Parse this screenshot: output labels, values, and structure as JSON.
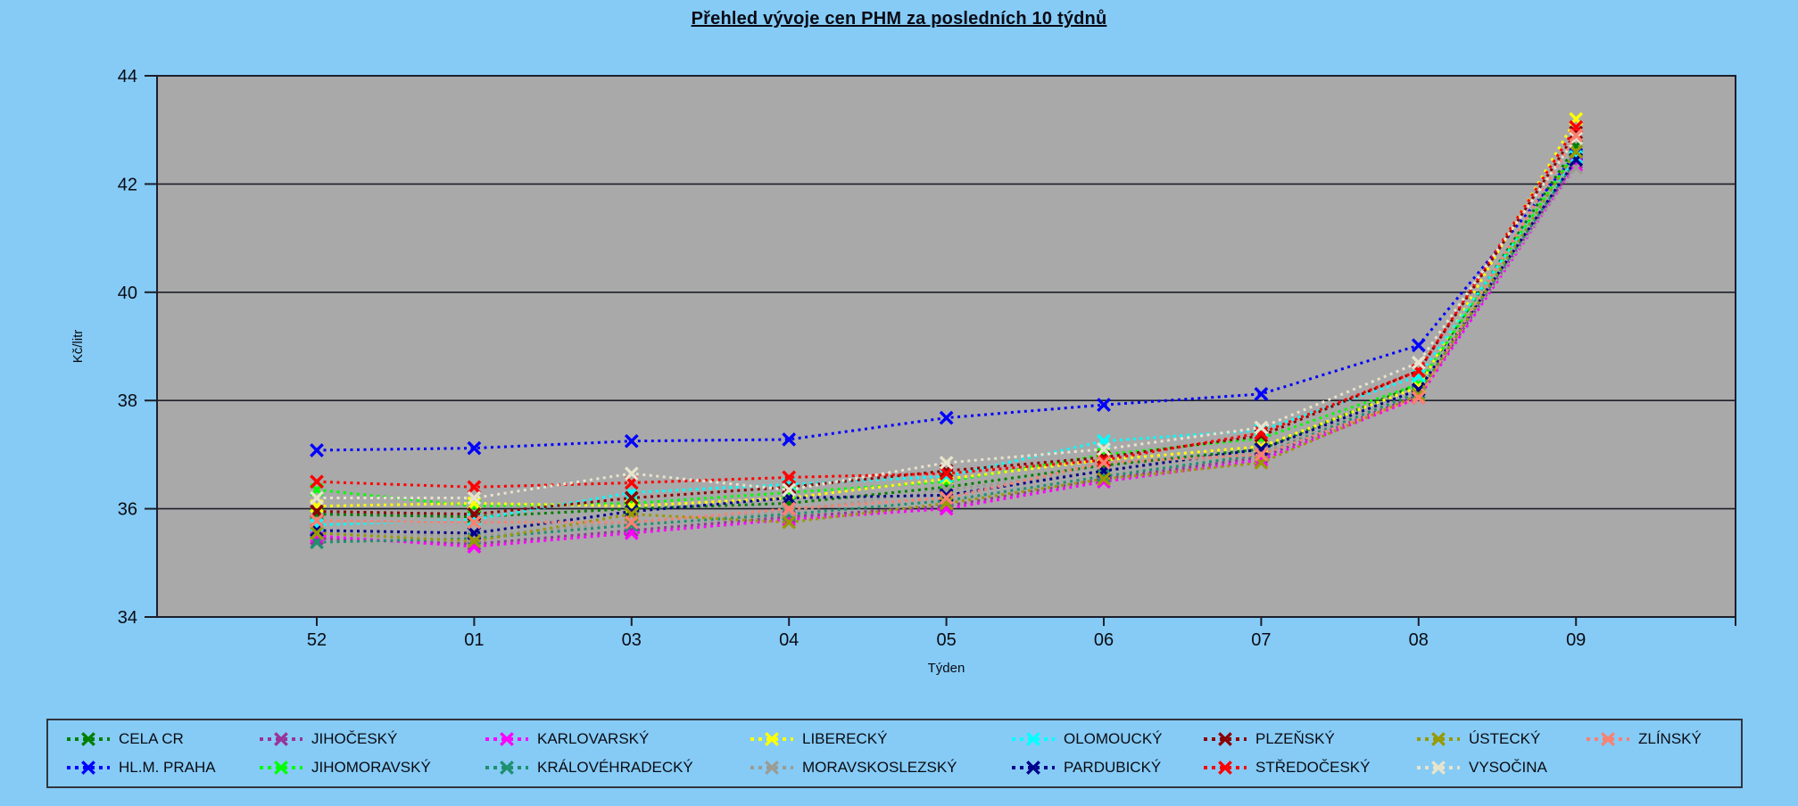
{
  "chart_data": {
    "type": "line",
    "title": "Přehled vývoje cen PHM za posledních 10 týdnů",
    "xlabel": "Týden",
    "ylabel": "Kč/litr",
    "ylim": [
      34,
      44
    ],
    "yticks": [
      34,
      36,
      38,
      40,
      42,
      44
    ],
    "grid": "horizontal",
    "legend_position": "bottom",
    "line_style": "dotted",
    "marker": "x",
    "page_bg": "#85CBF6",
    "plot_bg": "#A9A9A9",
    "axis_color": "#1c1e2a",
    "categories": [
      "52",
      "01",
      "03",
      "04",
      "05",
      "06",
      "07",
      "08",
      "09"
    ],
    "series": [
      {
        "name": "CELA CR",
        "color": "#008000",
        "values": [
          35.9,
          35.85,
          36.0,
          36.1,
          36.4,
          36.8,
          37.1,
          38.3,
          42.7
        ]
      },
      {
        "name": "HL.M. PRAHA",
        "color": "#0000FF",
        "values": [
          37.08,
          37.12,
          37.25,
          37.28,
          37.68,
          37.92,
          38.12,
          39.02,
          42.55
        ]
      },
      {
        "name": "JIHOČESKÝ",
        "color": "#993399",
        "values": [
          35.45,
          35.35,
          35.6,
          35.85,
          36.05,
          36.55,
          36.95,
          38.1,
          42.4
        ]
      },
      {
        "name": "JIHOMORAVSKÝ",
        "color": "#00FF00",
        "values": [
          36.35,
          36.05,
          36.1,
          36.3,
          36.5,
          37.0,
          37.3,
          38.3,
          42.6
        ]
      },
      {
        "name": "KARLOVARSKÝ",
        "color": "#FF00FF",
        "values": [
          35.5,
          35.3,
          35.55,
          35.8,
          36.0,
          36.5,
          36.9,
          38.05,
          42.35
        ]
      },
      {
        "name": "KRÁLOVÉHRADECKÝ",
        "color": "#1E9070",
        "values": [
          35.38,
          35.45,
          35.7,
          35.9,
          36.15,
          36.6,
          37.0,
          38.15,
          42.45
        ]
      },
      {
        "name": "LIBERECKÝ",
        "color": "#FFFF00",
        "values": [
          36.05,
          36.1,
          36.05,
          36.2,
          36.55,
          36.9,
          37.15,
          38.25,
          43.2
        ]
      },
      {
        "name": "MORAVSKOSLEZSKÝ",
        "color": "#9C9C94",
        "values": [
          35.55,
          35.5,
          35.75,
          35.95,
          36.35,
          36.7,
          37.05,
          38.2,
          42.3
        ]
      },
      {
        "name": "OLOMOUCKÝ",
        "color": "#00FFFF",
        "values": [
          35.7,
          35.8,
          36.3,
          36.45,
          36.6,
          37.25,
          37.45,
          38.45,
          42.5
        ]
      },
      {
        "name": "PARDUBICKÝ",
        "color": "#00008B",
        "values": [
          35.6,
          35.55,
          35.95,
          36.2,
          36.25,
          36.7,
          37.1,
          38.2,
          42.45
        ]
      },
      {
        "name": "PLZEŇSKÝ",
        "color": "#8B0000",
        "values": [
          35.95,
          35.9,
          36.2,
          36.4,
          36.7,
          36.95,
          37.35,
          38.55,
          42.95
        ]
      },
      {
        "name": "STŘEDOČESKÝ",
        "color": "#FF0000",
        "values": [
          36.5,
          36.4,
          36.48,
          36.58,
          36.65,
          36.9,
          37.4,
          38.55,
          43.05
        ]
      },
      {
        "name": "ÚSTECKÝ",
        "color": "#999900",
        "values": [
          35.55,
          35.4,
          35.9,
          35.75,
          36.1,
          36.55,
          36.85,
          38.1,
          42.6
        ]
      },
      {
        "name": "VYSOČINA",
        "color": "#E8E4CC",
        "values": [
          36.2,
          36.2,
          36.65,
          36.35,
          36.85,
          37.1,
          37.5,
          38.7,
          42.85
        ]
      },
      {
        "name": "ZLÍNSKÝ",
        "color": "#FA8072",
        "values": [
          35.78,
          35.75,
          35.75,
          36.0,
          36.2,
          36.85,
          37.0,
          38.05,
          42.9
        ]
      }
    ]
  }
}
